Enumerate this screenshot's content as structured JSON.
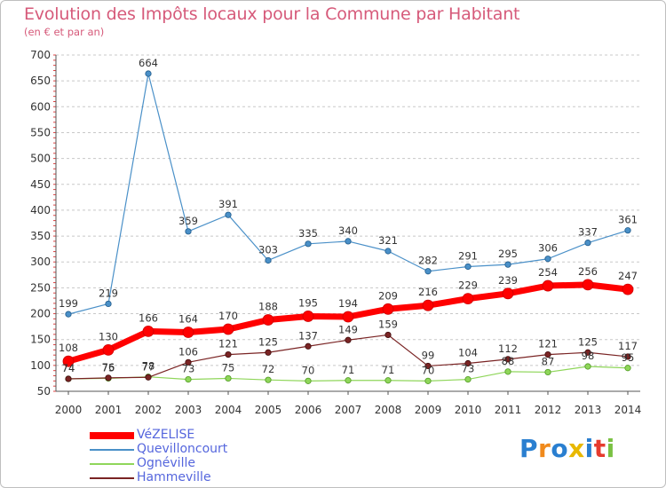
{
  "chart_data": {
    "type": "line",
    "title": "Evolution des Impôts locaux pour la Commune par Habitant",
    "subtitle": "(en € et par an)",
    "x": [
      "2000",
      "2001",
      "2002",
      "2003",
      "2004",
      "2005",
      "2006",
      "2007",
      "2008",
      "2009",
      "2010",
      "2011",
      "2012",
      "2013",
      "2014"
    ],
    "ylim": [
      50,
      700
    ],
    "yticks": [
      "50",
      "100",
      "150",
      "200",
      "250",
      "300",
      "350",
      "400",
      "450",
      "500",
      "550",
      "600",
      "650",
      "700"
    ],
    "grid": "horizontal dashed",
    "legend_position": "bottom-left",
    "series": [
      {
        "name": "VéZELISE",
        "color": "#ff0000",
        "values": [
          108,
          130,
          166,
          164,
          170,
          188,
          195,
          194,
          209,
          216,
          229,
          239,
          254,
          256,
          247
        ]
      },
      {
        "name": "Quevilloncourt",
        "color": "#4a90c8",
        "values": [
          199,
          219,
          664,
          359,
          391,
          303,
          335,
          340,
          321,
          282,
          291,
          295,
          306,
          337,
          361
        ]
      },
      {
        "name": "Ognéville",
        "color": "#8fd65a",
        "values": [
          74,
          75,
          78,
          73,
          75,
          72,
          70,
          71,
          71,
          70,
          73,
          88,
          87,
          98,
          95
        ]
      },
      {
        "name": "Hammeville",
        "color": "#7a2424",
        "values": [
          74,
          76,
          77,
          106,
          121,
          125,
          137,
          149,
          159,
          99,
          104,
          112,
          121,
          125,
          117
        ]
      }
    ],
    "labels": [
      [
        "108",
        "130",
        "166",
        "164",
        "170",
        "188",
        "195",
        "194",
        "209",
        "216",
        "229",
        "239",
        "254",
        "256",
        "247"
      ],
      [
        "199",
        "219",
        "664",
        "359",
        "391",
        "303",
        "335",
        "340",
        "321",
        "282",
        "291",
        "295",
        "306",
        "337",
        "361"
      ],
      [
        "74",
        "75",
        "78",
        "73",
        "75",
        "72",
        "70",
        "71",
        "71",
        "70",
        "73",
        "88",
        "87",
        "98",
        "95"
      ],
      [
        "74",
        "76",
        "77",
        "106",
        "121",
        "125",
        "137",
        "149",
        "159",
        "99",
        "104",
        "112",
        "121",
        "125",
        "117"
      ]
    ]
  },
  "logo": {
    "letters": [
      "P",
      "r",
      "o",
      "x",
      "i",
      "t",
      "i"
    ],
    "colors": [
      "#2a7fd0",
      "#f08a1c",
      "#2a7fd0",
      "#e8b800",
      "#2a7fd0",
      "#e63b2e",
      "#7ac142"
    ]
  }
}
